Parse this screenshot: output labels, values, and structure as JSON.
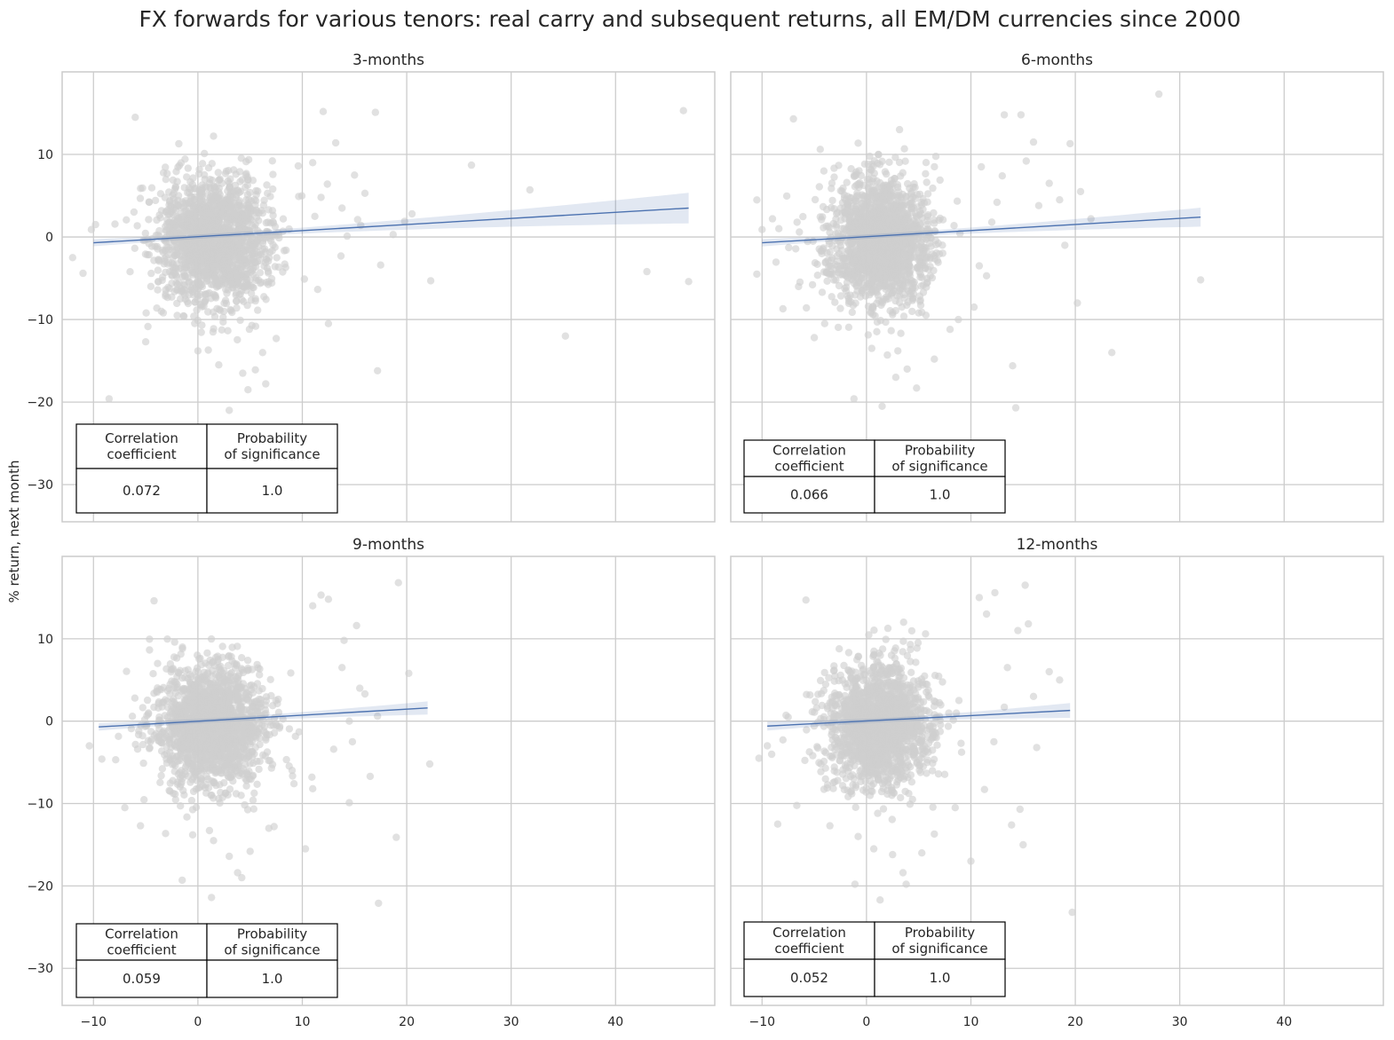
{
  "figure": {
    "title": "FX forwards for various tenors: real carry and subsequent returns, all EM/DM currencies since 2000",
    "ylabel": "% return, next month",
    "xlabel": ""
  },
  "chart_data": [
    {
      "type": "scatter",
      "title": "3-months",
      "xlabel": "",
      "ylabel": "% return, next month",
      "xlim": [
        -13,
        49.5
      ],
      "ylim": [
        -34.5,
        20
      ],
      "xticks": [
        -10,
        0,
        10,
        20,
        30,
        40
      ],
      "yticks": [
        10,
        0,
        -10,
        -20,
        -30
      ],
      "grid": true,
      "scatter_color": "#cfcfcf",
      "fit_color": "#4c72b0",
      "regression": {
        "x": [
          -10,
          47
        ],
        "y": [
          -0.7,
          3.5
        ],
        "ci_at_end": [
          1.6,
          5.3
        ]
      },
      "table": {
        "headers": [
          "Correlation\ncoefficient",
          "Probability\nof significance"
        ],
        "values": [
          "0.072",
          "1.0"
        ],
        "location": "lower left"
      },
      "cloud": {
        "x_center": 1.5,
        "x_spread": 2.6,
        "y_center": -0.5,
        "y_spread": 3.8
      },
      "outliers": [
        [
          46.5,
          15.3
        ],
        [
          47,
          -5.4
        ],
        [
          43,
          -4.2
        ],
        [
          35.2,
          -12
        ],
        [
          31.8,
          5.7
        ],
        [
          26.2,
          8.7
        ],
        [
          22.3,
          -5.3
        ],
        [
          20.5,
          2.8
        ],
        [
          19.8,
          1.9
        ],
        [
          18.7,
          0.3
        ],
        [
          17.5,
          -3.4
        ],
        [
          17.2,
          -16.2
        ],
        [
          17,
          15.1
        ],
        [
          16,
          5.3
        ],
        [
          15.6,
          1.4
        ],
        [
          15.3,
          2.1
        ],
        [
          15,
          7.5
        ],
        [
          14.3,
          0.1
        ],
        [
          13.8,
          3.5
        ],
        [
          13.2,
          11.4
        ],
        [
          12.5,
          -10.5
        ],
        [
          12.4,
          6.4
        ],
        [
          12,
          15.2
        ],
        [
          11.8,
          4.8
        ],
        [
          11.2,
          2.5
        ],
        [
          11,
          9
        ],
        [
          13.7,
          -2.3
        ],
        [
          -8.5,
          -19.6
        ],
        [
          -6,
          14.5
        ],
        [
          -12,
          -2.5
        ],
        [
          -11,
          -4.4
        ],
        [
          -10.2,
          0.9
        ],
        [
          -9.8,
          1.5
        ],
        [
          3,
          -21
        ],
        [
          4.8,
          -18.5
        ],
        [
          5.5,
          -16.1
        ],
        [
          6.2,
          -14
        ],
        [
          2,
          -15.5
        ],
        [
          1,
          -13.7
        ],
        [
          0,
          -13.8
        ],
        [
          -3.5,
          -9
        ],
        [
          -5,
          -12.7
        ],
        [
          6.5,
          -17.8
        ],
        [
          7.5,
          -12.3
        ],
        [
          4.3,
          -16.5
        ],
        [
          10.2,
          -5.1
        ]
      ]
    },
    {
      "type": "scatter",
      "title": "6-months",
      "xlabel": "",
      "ylabel": "",
      "xlim": [
        -13,
        49.5
      ],
      "ylim": [
        -34.5,
        20
      ],
      "xticks": [
        -10,
        0,
        10,
        20,
        30,
        40
      ],
      "yticks": [
        10,
        0,
        -10,
        -20,
        -30
      ],
      "grid": true,
      "scatter_color": "#cfcfcf",
      "fit_color": "#4c72b0",
      "regression": {
        "x": [
          -10,
          32
        ],
        "y": [
          -0.7,
          2.4
        ],
        "ci_at_end": [
          1.3,
          3.6
        ]
      },
      "table": {
        "headers": [
          "Correlation\ncoefficient",
          "Probability\nof significance"
        ],
        "values": [
          "0.066",
          "1.0"
        ],
        "location": "lower left"
      },
      "cloud": {
        "x_center": 1.2,
        "x_spread": 2.4,
        "y_center": -0.5,
        "y_spread": 3.8
      },
      "outliers": [
        [
          28,
          17.3
        ],
        [
          32,
          -5.2
        ],
        [
          23.5,
          -14
        ],
        [
          20.2,
          -8
        ],
        [
          20.5,
          5.5
        ],
        [
          19.5,
          11.3
        ],
        [
          19,
          -1
        ],
        [
          18.5,
          4.5
        ],
        [
          16.5,
          3.8
        ],
        [
          16,
          11.5
        ],
        [
          15.3,
          9.2
        ],
        [
          14.8,
          14.8
        ],
        [
          14.3,
          -20.7
        ],
        [
          14,
          -15.6
        ],
        [
          13.2,
          14.8
        ],
        [
          13,
          7.4
        ],
        [
          12.5,
          4.2
        ],
        [
          12,
          1.8
        ],
        [
          11.5,
          -4.7
        ],
        [
          11,
          8.5
        ],
        [
          10.8,
          -3.5
        ],
        [
          -7,
          14.3
        ],
        [
          -10.5,
          -4.5
        ],
        [
          -10,
          0.9
        ],
        [
          -9,
          2.2
        ],
        [
          -8,
          -8.7
        ],
        [
          -5,
          -12.2
        ],
        [
          -1.2,
          -19.6
        ],
        [
          1.5,
          -20.5
        ],
        [
          4.8,
          -18.3
        ],
        [
          3.9,
          -16
        ],
        [
          3,
          -13.8
        ],
        [
          0.5,
          -13.5
        ],
        [
          2,
          -14.3
        ],
        [
          6.5,
          -14.8
        ],
        [
          8,
          -11.2
        ],
        [
          8.8,
          -10
        ],
        [
          10.3,
          -8.5
        ],
        [
          -4,
          -10.5
        ],
        [
          -6.5,
          -6
        ],
        [
          21.5,
          2.2
        ],
        [
          17.5,
          6.5
        ]
      ]
    },
    {
      "type": "scatter",
      "title": "9-months",
      "xlabel": "",
      "ylabel": "% return, next month",
      "xlim": [
        -13,
        49.5
      ],
      "ylim": [
        -34.5,
        20
      ],
      "xticks": [
        -10,
        0,
        10,
        20,
        30,
        40
      ],
      "yticks": [
        10,
        0,
        -10,
        -20,
        -30
      ],
      "grid": true,
      "scatter_color": "#cfcfcf",
      "fit_color": "#4c72b0",
      "regression": {
        "x": [
          -9.5,
          22
        ],
        "y": [
          -0.7,
          1.6
        ],
        "ci_at_end": [
          0.8,
          2.4
        ]
      },
      "table": {
        "headers": [
          "Correlation\ncoefficient",
          "Probability\nof significance"
        ],
        "values": [
          "0.059",
          "1.0"
        ],
        "location": "lower left"
      },
      "cloud": {
        "x_center": 1.3,
        "x_spread": 2.5,
        "y_center": -0.5,
        "y_spread": 3.7
      },
      "outliers": [
        [
          19.2,
          16.8
        ],
        [
          22.2,
          -5.2
        ],
        [
          19,
          -14.1
        ],
        [
          17.3,
          -22.1
        ],
        [
          16.5,
          -6.7
        ],
        [
          17.2,
          0.6
        ],
        [
          15.5,
          4
        ],
        [
          14.5,
          0
        ],
        [
          14.8,
          -2.5
        ],
        [
          14,
          9.8
        ],
        [
          13.8,
          6.5
        ],
        [
          15.2,
          11.6
        ],
        [
          12.5,
          14.8
        ],
        [
          11.8,
          15.3
        ],
        [
          11,
          14
        ],
        [
          16,
          3.3
        ],
        [
          11,
          -8.2
        ],
        [
          10.3,
          -15.5
        ],
        [
          14.5,
          -9.9
        ],
        [
          13,
          -3.4
        ],
        [
          -4.2,
          14.6
        ],
        [
          -10.4,
          -3
        ],
        [
          -9.2,
          -4.6
        ],
        [
          -7,
          -10.5
        ],
        [
          -1.5,
          -19.3
        ],
        [
          1.3,
          -21.4
        ],
        [
          3.8,
          -18.4
        ],
        [
          4.2,
          -19
        ],
        [
          3,
          -16.4
        ],
        [
          1.5,
          -14.5
        ],
        [
          -0.5,
          -13.8
        ],
        [
          5,
          -15.8
        ],
        [
          6.8,
          -13
        ],
        [
          7.3,
          -12.8
        ],
        [
          20.2,
          5.8
        ],
        [
          -5.5,
          -12.7
        ],
        [
          9.2,
          -7.6
        ]
      ]
    },
    {
      "type": "scatter",
      "title": "12-months",
      "xlabel": "",
      "ylabel": "",
      "xlim": [
        -13,
        49.5
      ],
      "ylim": [
        -34.5,
        20
      ],
      "xticks": [
        -10,
        0,
        10,
        20,
        30,
        40
      ],
      "yticks": [
        10,
        0,
        -10,
        -20,
        -30
      ],
      "grid": true,
      "scatter_color": "#cfcfcf",
      "fit_color": "#4c72b0",
      "regression": {
        "x": [
          -9.5,
          19.5
        ],
        "y": [
          -0.6,
          1.3
        ],
        "ci_at_end": [
          0.4,
          2.2
        ]
      },
      "table": {
        "headers": [
          "Correlation\ncoefficient",
          "Probability\nof significance"
        ],
        "values": [
          "0.052",
          "1.0"
        ],
        "location": "lower left"
      },
      "cloud": {
        "x_center": 1.2,
        "x_spread": 2.4,
        "y_center": -0.5,
        "y_spread": 3.7
      },
      "outliers": [
        [
          19.7,
          -23.2
        ],
        [
          15.2,
          16.5
        ],
        [
          15.5,
          11.8
        ],
        [
          14.5,
          11
        ],
        [
          15,
          -15
        ],
        [
          14.7,
          -10.7
        ],
        [
          13.9,
          -12.6
        ],
        [
          12.3,
          15.6
        ],
        [
          11.5,
          13
        ],
        [
          10.8,
          15
        ],
        [
          13.5,
          6.5
        ],
        [
          13.2,
          1.7
        ],
        [
          12.2,
          -2.5
        ],
        [
          11.3,
          -8.3
        ],
        [
          10,
          -17
        ],
        [
          17.5,
          6
        ],
        [
          18.5,
          5
        ],
        [
          16,
          3
        ],
        [
          -5.8,
          14.7
        ],
        [
          -9.5,
          -3
        ],
        [
          -10.3,
          -4.5
        ],
        [
          -8.5,
          -12.5
        ],
        [
          -1.1,
          -19.8
        ],
        [
          1.3,
          -21.7
        ],
        [
          3.8,
          -19.8
        ],
        [
          3.5,
          -18.4
        ],
        [
          2.5,
          -16.2
        ],
        [
          0.7,
          -15.5
        ],
        [
          -0.8,
          -14
        ],
        [
          5.3,
          -16
        ],
        [
          6.5,
          -13.7
        ],
        [
          -3.5,
          -12.7
        ],
        [
          8.5,
          -10.5
        ],
        [
          16.3,
          -3.2
        ]
      ]
    }
  ]
}
